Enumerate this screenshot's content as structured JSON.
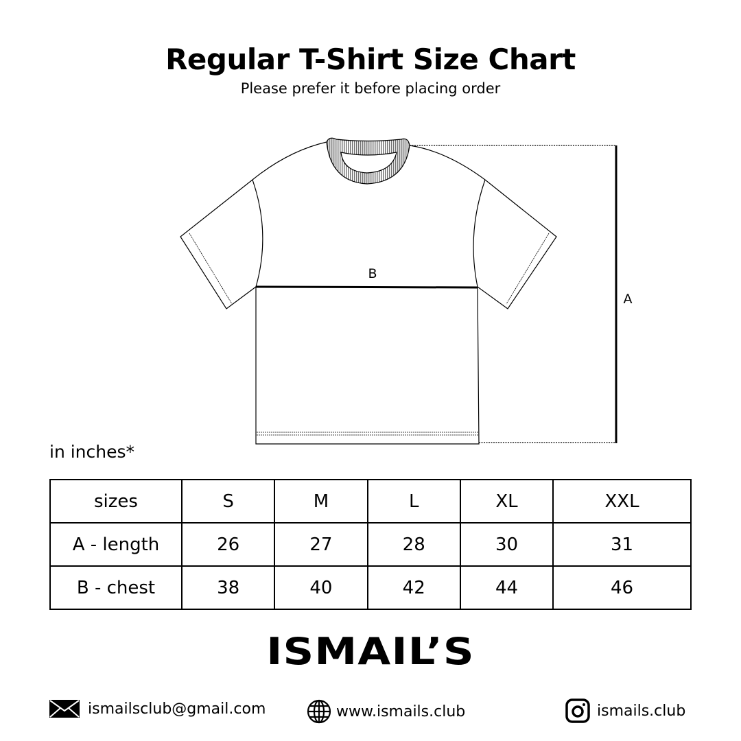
{
  "header": {
    "title": "Regular T-Shirt Size Chart",
    "subtitle": "Please prefer it before placing order"
  },
  "diagram": {
    "label_a": "A",
    "label_b": "B"
  },
  "table": {
    "unit_note": "in inches*",
    "headers": [
      "sizes",
      "S",
      "M",
      "L",
      "XL",
      "XXL"
    ],
    "rows": [
      [
        "A - length",
        "26",
        "27",
        "28",
        "30",
        "31"
      ],
      [
        "B - chest",
        "38",
        "40",
        "42",
        "44",
        "46"
      ]
    ]
  },
  "brand": {
    "name": "ISMAIL’S"
  },
  "footer": {
    "email": {
      "icon": "envelope-icon",
      "text": "ismailsclub@gmail.com"
    },
    "website": {
      "icon": "globe-icon",
      "text": "www.ismails.club"
    },
    "instagram": {
      "icon": "instagram-icon",
      "text": "ismails.club"
    }
  }
}
